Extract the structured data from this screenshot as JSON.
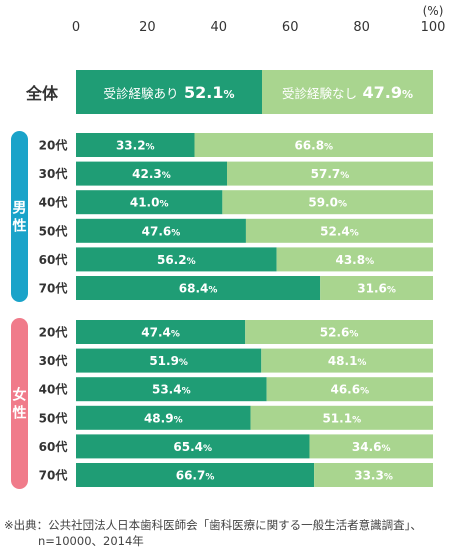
{
  "chart_data": {
    "type": "bar",
    "stacked": true,
    "orientation": "horizontal",
    "unit": "(%)",
    "xlim": [
      0,
      100
    ],
    "xticks": [
      "0",
      "20",
      "40",
      "60",
      "80",
      "100"
    ],
    "series_labels": [
      "受診経験あり",
      "受診経験なし"
    ],
    "colors": {
      "yes": "#1f9d75",
      "no": "#a9d58f",
      "male": "#1aa3c9",
      "female": "#f07b8a"
    },
    "total": {
      "label": "全体",
      "yes": 52.1,
      "no": 47.9,
      "yes_text": "受診経験あり",
      "no_text": "受診経験なし",
      "yes_value": "52.1",
      "no_value": "47.9",
      "pct": "%"
    },
    "groups": [
      {
        "label": "男性",
        "rows": [
          {
            "age": "20代",
            "yes": 33.2,
            "no": 66.8
          },
          {
            "age": "30代",
            "yes": 42.3,
            "no": 57.7
          },
          {
            "age": "40代",
            "yes": 41.0,
            "no": 59.0
          },
          {
            "age": "50代",
            "yes": 47.6,
            "no": 52.4
          },
          {
            "age": "60代",
            "yes": 56.2,
            "no": 43.8
          },
          {
            "age": "70代",
            "yes": 68.4,
            "no": 31.6
          }
        ]
      },
      {
        "label": "女性",
        "rows": [
          {
            "age": "20代",
            "yes": 47.4,
            "no": 52.6
          },
          {
            "age": "30代",
            "yes": 51.9,
            "no": 48.1
          },
          {
            "age": "40代",
            "yes": 53.4,
            "no": 46.6
          },
          {
            "age": "50代",
            "yes": 48.9,
            "no": 51.1
          },
          {
            "age": "60代",
            "yes": 65.4,
            "no": 34.6
          },
          {
            "age": "70代",
            "yes": 66.7,
            "no": 33.3
          }
        ]
      }
    ]
  },
  "footnote": {
    "line1": "※出典：公共社団法人日本歯科医師会「歯科医療に関する一般生活者意識調査」、",
    "line2": "n=10000、2014年"
  }
}
